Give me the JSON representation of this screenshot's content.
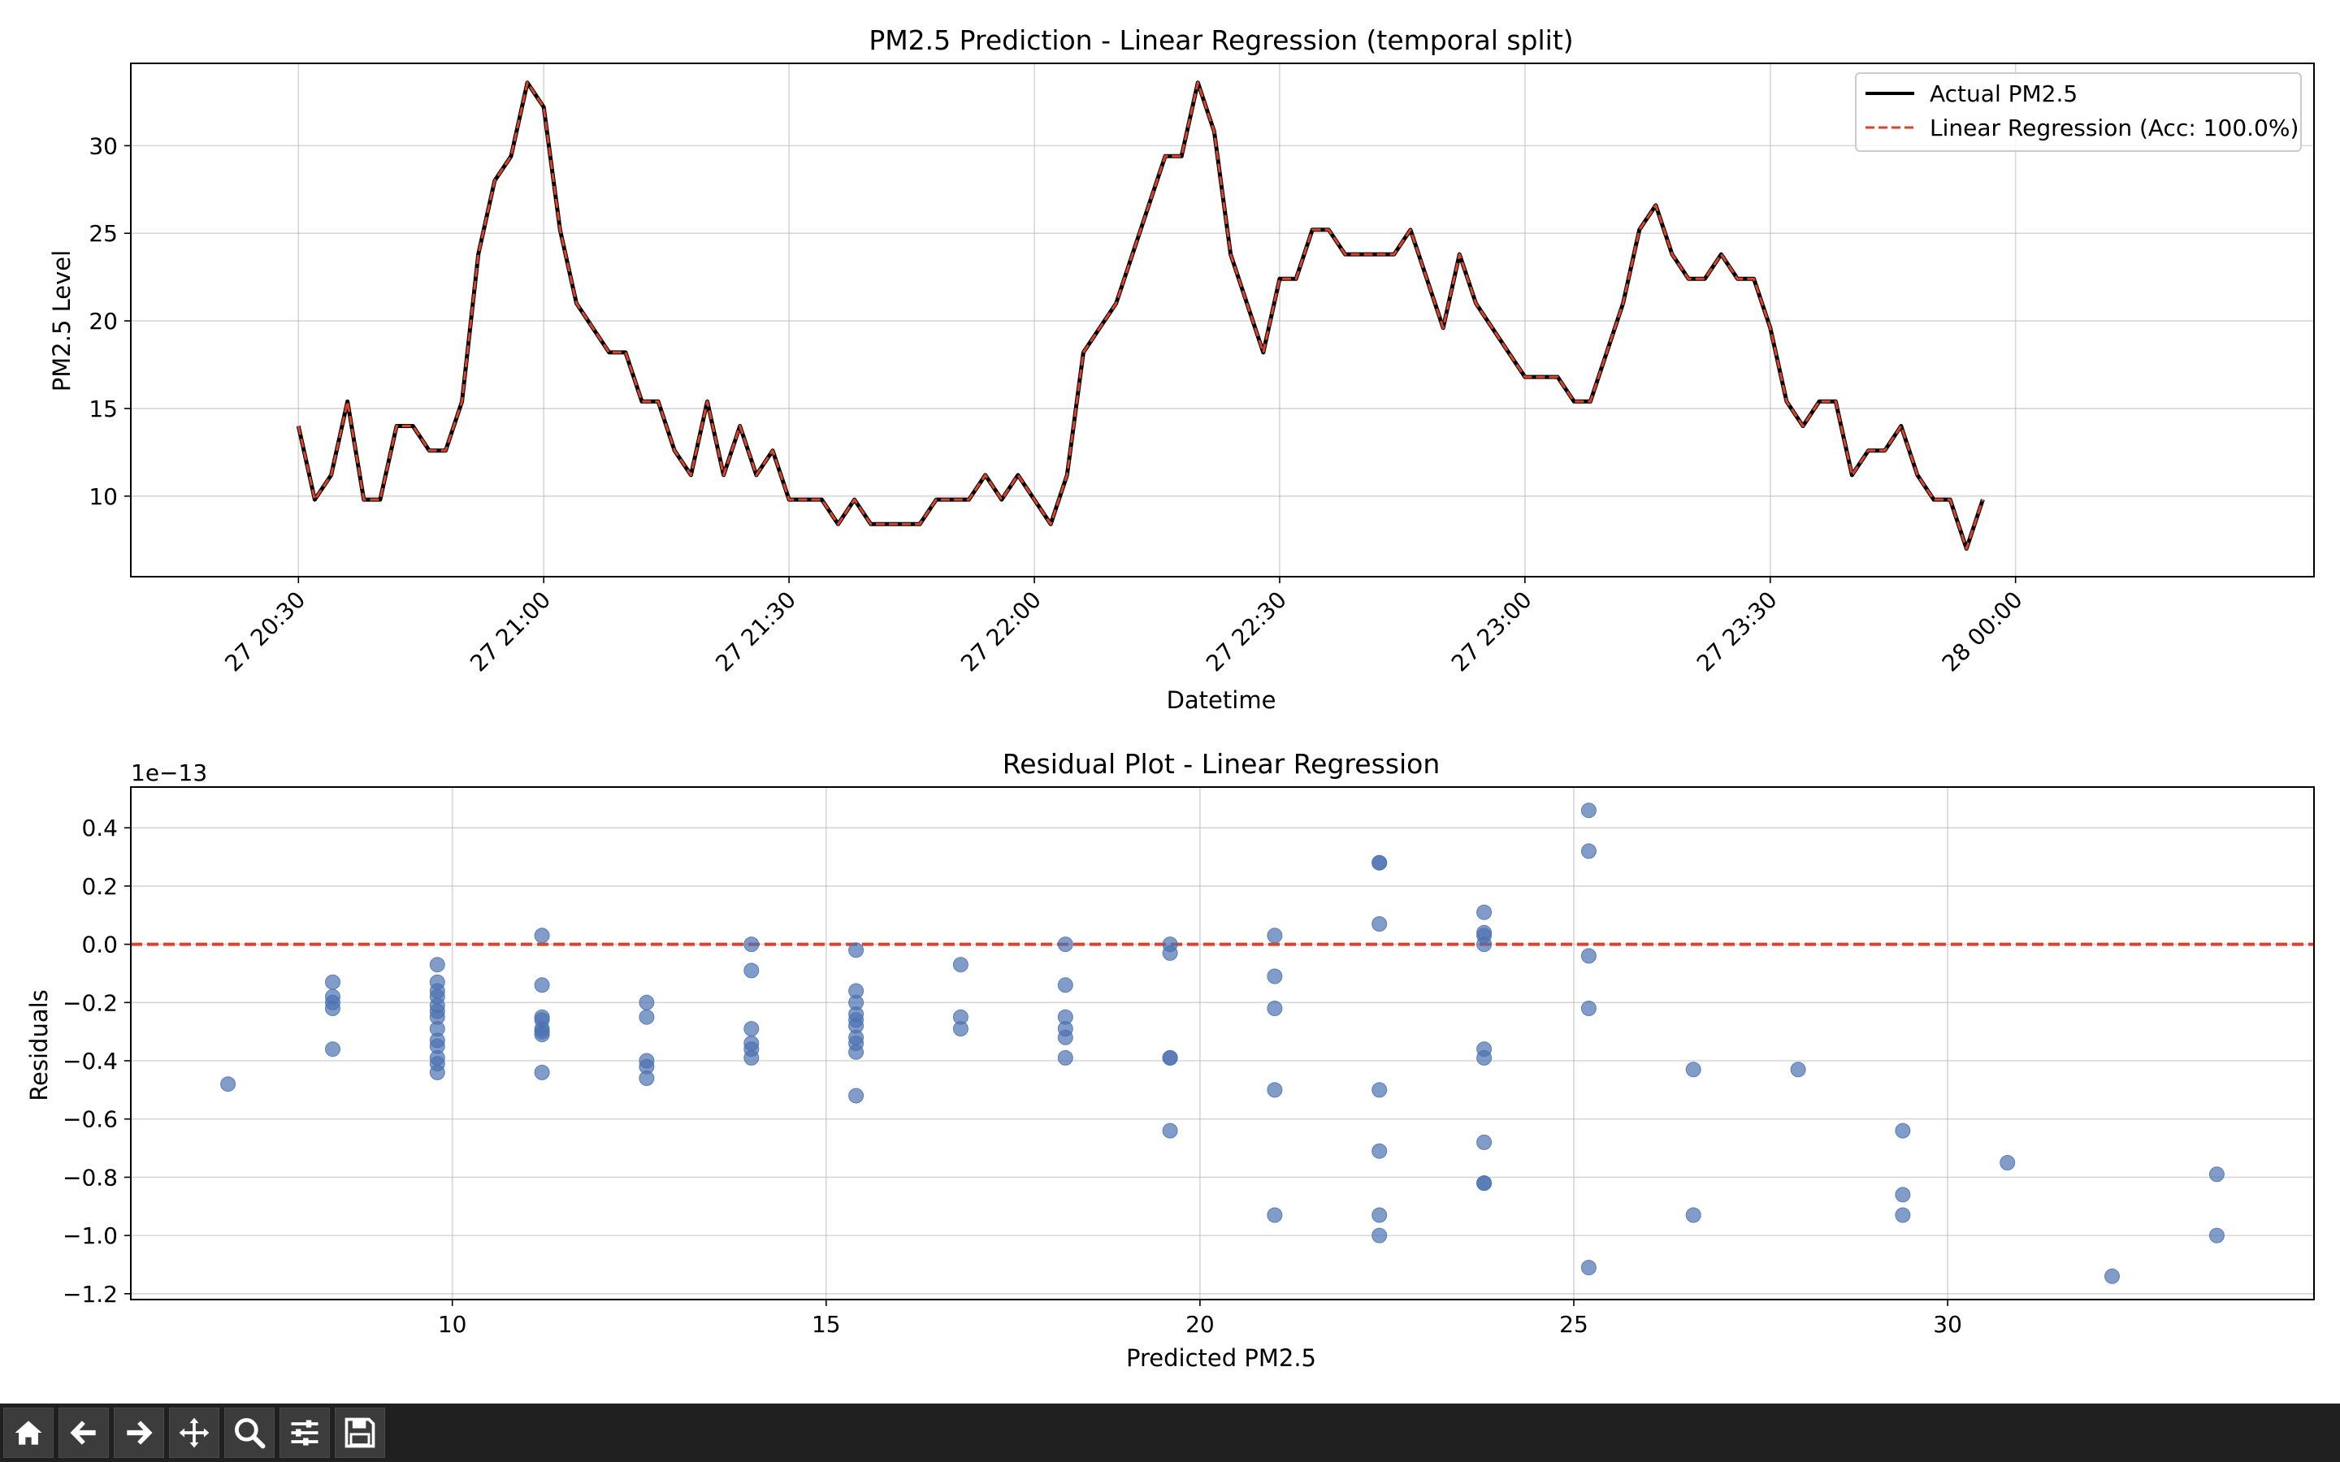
{
  "chart_data": [
    {
      "type": "line",
      "title": "PM2.5 Prediction - Linear Regression (temporal split)",
      "xlabel": "Datetime",
      "ylabel": "PM2.5 Level",
      "xlim_minutes": [
        -20.5,
        246.5
      ],
      "ylim": [
        5.4,
        34.7
      ],
      "x_ticks": [
        {
          "minute": 0,
          "label": "27 20:30"
        },
        {
          "minute": 30,
          "label": "27 21:00"
        },
        {
          "minute": 60,
          "label": "27 21:30"
        },
        {
          "minute": 90,
          "label": "27 22:00"
        },
        {
          "minute": 120,
          "label": "27 22:30"
        },
        {
          "minute": 150,
          "label": "27 23:00"
        },
        {
          "minute": 180,
          "label": "27 23:30"
        },
        {
          "minute": 210,
          "label": "28 00:00"
        }
      ],
      "y_ticks": [
        10,
        15,
        20,
        25,
        30
      ],
      "x_step_minutes": 2,
      "grid": true,
      "legend_position": "top-right",
      "series": [
        {
          "name": "Actual PM2.5",
          "color": "#000000",
          "style": "solid",
          "values": [
            14.0,
            9.8,
            11.2,
            15.4,
            9.8,
            9.8,
            14.0,
            14.0,
            12.6,
            12.6,
            15.4,
            23.8,
            28.0,
            29.4,
            33.6,
            32.2,
            25.2,
            21.0,
            19.6,
            18.2,
            18.2,
            15.4,
            15.4,
            12.6,
            11.2,
            15.4,
            11.2,
            14.0,
            11.2,
            12.6,
            9.8,
            9.8,
            9.8,
            8.4,
            9.8,
            8.4,
            8.4,
            8.4,
            8.4,
            9.8,
            9.8,
            9.8,
            11.2,
            9.8,
            11.2,
            9.8,
            8.4,
            11.2,
            18.2,
            19.6,
            21.0,
            23.8,
            26.6,
            29.4,
            29.4,
            33.6,
            30.8,
            23.8,
            21.0,
            18.2,
            22.4,
            22.4,
            25.2,
            25.2,
            23.8,
            23.8,
            23.8,
            23.8,
            25.2,
            22.4,
            19.6,
            23.8,
            21.0,
            19.6,
            18.2,
            16.8,
            16.8,
            16.8,
            15.4,
            15.4,
            18.2,
            21.0,
            25.2,
            26.6,
            23.8,
            22.4,
            22.4,
            23.8,
            22.4,
            22.4,
            19.6,
            15.4,
            14.0,
            15.4,
            15.4,
            11.2,
            12.6,
            12.6,
            14.0,
            11.2,
            9.8,
            9.8,
            7.0,
            9.8
          ]
        },
        {
          "name": "Linear Regression (Acc: 100.0%)",
          "color": "#d9442a",
          "style": "dashed",
          "values": [
            14.0,
            9.8,
            11.2,
            15.4,
            9.8,
            9.8,
            14.0,
            14.0,
            12.6,
            12.6,
            15.4,
            23.8,
            28.0,
            29.4,
            33.6,
            32.2,
            25.2,
            21.0,
            19.6,
            18.2,
            18.2,
            15.4,
            15.4,
            12.6,
            11.2,
            15.4,
            11.2,
            14.0,
            11.2,
            12.6,
            9.8,
            9.8,
            9.8,
            8.4,
            9.8,
            8.4,
            8.4,
            8.4,
            8.4,
            9.8,
            9.8,
            9.8,
            11.2,
            9.8,
            11.2,
            9.8,
            8.4,
            11.2,
            18.2,
            19.6,
            21.0,
            23.8,
            26.6,
            29.4,
            29.4,
            33.6,
            30.8,
            23.8,
            21.0,
            18.2,
            22.4,
            22.4,
            25.2,
            25.2,
            23.8,
            23.8,
            23.8,
            23.8,
            25.2,
            22.4,
            19.6,
            23.8,
            21.0,
            19.6,
            18.2,
            16.8,
            16.8,
            16.8,
            15.4,
            15.4,
            18.2,
            21.0,
            25.2,
            26.6,
            23.8,
            22.4,
            22.4,
            23.8,
            22.4,
            22.4,
            19.6,
            15.4,
            14.0,
            15.4,
            15.4,
            11.2,
            12.6,
            12.6,
            14.0,
            11.2,
            9.8,
            9.8,
            7.0,
            9.8
          ]
        }
      ]
    },
    {
      "type": "scatter",
      "title": "Residual Plot - Linear Regression",
      "xlabel": "Predicted PM2.5",
      "ylabel": "Residuals",
      "offset_label": "1e−13",
      "xlim": [
        5.7,
        34.9
      ],
      "ylim": [
        -1.22,
        0.54
      ],
      "x_ticks": [
        10,
        15,
        20,
        25,
        30
      ],
      "y_ticks": [
        0.4,
        0.2,
        0.0,
        -0.2,
        -0.4,
        -0.6,
        -0.8,
        -1.0,
        -1.2
      ],
      "y_tick_labels": [
        "0.4",
        "0.2",
        "0.0",
        "−0.2",
        "−0.4",
        "−0.6",
        "−0.8",
        "−1.0",
        "−1.2"
      ],
      "reference_line": {
        "y": 0.0,
        "color": "#d9442a",
        "style": "dashed"
      },
      "point_color": "#4c72b0",
      "grid": true,
      "points": [
        [
          7.0,
          -0.48
        ],
        [
          8.4,
          -0.13
        ],
        [
          8.4,
          -0.18
        ],
        [
          8.4,
          -0.2
        ],
        [
          8.4,
          -0.22
        ],
        [
          8.4,
          -0.36
        ],
        [
          9.8,
          -0.07
        ],
        [
          9.8,
          -0.13
        ],
        [
          9.8,
          -0.16
        ],
        [
          9.8,
          -0.18
        ],
        [
          9.8,
          -0.21
        ],
        [
          9.8,
          -0.23
        ],
        [
          9.8,
          -0.25
        ],
        [
          9.8,
          -0.29
        ],
        [
          9.8,
          -0.33
        ],
        [
          9.8,
          -0.35
        ],
        [
          9.8,
          -0.39
        ],
        [
          9.8,
          -0.41
        ],
        [
          9.8,
          -0.44
        ],
        [
          11.2,
          0.03
        ],
        [
          11.2,
          -0.14
        ],
        [
          11.2,
          -0.25
        ],
        [
          11.2,
          -0.26
        ],
        [
          11.2,
          -0.29
        ],
        [
          11.2,
          -0.3
        ],
        [
          11.2,
          -0.31
        ],
        [
          11.2,
          -0.44
        ],
        [
          12.6,
          -0.2
        ],
        [
          12.6,
          -0.25
        ],
        [
          12.6,
          -0.4
        ],
        [
          12.6,
          -0.42
        ],
        [
          12.6,
          -0.46
        ],
        [
          14.0,
          0.0
        ],
        [
          14.0,
          -0.09
        ],
        [
          14.0,
          -0.29
        ],
        [
          14.0,
          -0.34
        ],
        [
          14.0,
          -0.36
        ],
        [
          14.0,
          -0.39
        ],
        [
          15.4,
          -0.02
        ],
        [
          15.4,
          -0.16
        ],
        [
          15.4,
          -0.2
        ],
        [
          15.4,
          -0.24
        ],
        [
          15.4,
          -0.26
        ],
        [
          15.4,
          -0.28
        ],
        [
          15.4,
          -0.32
        ],
        [
          15.4,
          -0.34
        ],
        [
          15.4,
          -0.37
        ],
        [
          15.4,
          -0.52
        ],
        [
          16.8,
          -0.07
        ],
        [
          16.8,
          -0.25
        ],
        [
          16.8,
          -0.29
        ],
        [
          18.2,
          0.0
        ],
        [
          18.2,
          -0.14
        ],
        [
          18.2,
          -0.25
        ],
        [
          18.2,
          -0.29
        ],
        [
          18.2,
          -0.32
        ],
        [
          18.2,
          -0.39
        ],
        [
          19.6,
          0.0
        ],
        [
          19.6,
          -0.03
        ],
        [
          19.6,
          -0.39
        ],
        [
          19.6,
          -0.39
        ],
        [
          19.6,
          -0.64
        ],
        [
          21.0,
          0.03
        ],
        [
          21.0,
          -0.11
        ],
        [
          21.0,
          -0.22
        ],
        [
          21.0,
          -0.5
        ],
        [
          21.0,
          -0.93
        ],
        [
          22.4,
          0.28
        ],
        [
          22.4,
          0.28
        ],
        [
          22.4,
          0.07
        ],
        [
          22.4,
          -0.5
        ],
        [
          22.4,
          -0.71
        ],
        [
          22.4,
          -0.93
        ],
        [
          22.4,
          -1.0
        ],
        [
          23.8,
          0.11
        ],
        [
          23.8,
          0.04
        ],
        [
          23.8,
          0.03
        ],
        [
          23.8,
          0.0
        ],
        [
          23.8,
          -0.36
        ],
        [
          23.8,
          -0.39
        ],
        [
          23.8,
          -0.68
        ],
        [
          23.8,
          -0.82
        ],
        [
          23.8,
          -0.82
        ],
        [
          25.2,
          0.46
        ],
        [
          25.2,
          0.32
        ],
        [
          25.2,
          -0.04
        ],
        [
          25.2,
          -0.22
        ],
        [
          25.2,
          -1.11
        ],
        [
          26.6,
          -0.43
        ],
        [
          26.6,
          -0.93
        ],
        [
          28.0,
          -0.43
        ],
        [
          29.4,
          -0.64
        ],
        [
          29.4,
          -0.86
        ],
        [
          29.4,
          -0.93
        ],
        [
          30.8,
          -0.75
        ],
        [
          32.2,
          -1.14
        ],
        [
          33.6,
          -0.79
        ],
        [
          33.6,
          -1.0
        ]
      ]
    }
  ],
  "toolbar": {
    "buttons": [
      "home-icon",
      "back-arrow-icon",
      "forward-arrow-icon",
      "pan-icon",
      "zoom-icon",
      "configure-subplots-icon",
      "save-icon"
    ]
  }
}
